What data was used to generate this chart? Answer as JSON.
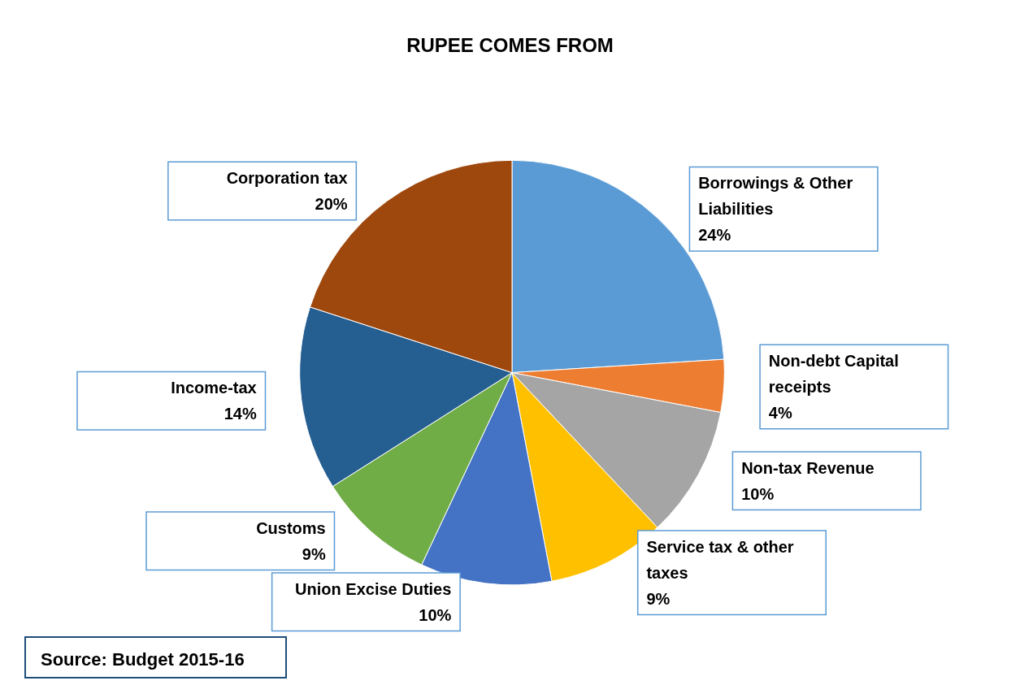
{
  "chart_data": {
    "type": "pie",
    "title": "RUPEE COMES FROM",
    "categories": [
      "Borrowings & Other Liabilities",
      "Non-debt Capital receipts",
      "Non-tax Revenue",
      "Service tax & other taxes",
      "Union Excise Duties",
      "Customs",
      "Income-tax",
      "Corporation tax"
    ],
    "values": [
      24,
      4,
      10,
      9,
      10,
      9,
      14,
      20
    ],
    "value_labels": [
      "24%",
      "4%",
      "10%",
      "9%",
      "10%",
      "9%",
      "14%",
      "20%"
    ],
    "colors": [
      "#5b9bd5",
      "#ed7d31",
      "#a5a5a5",
      "#ffc000",
      "#4472c4",
      "#70ad47",
      "#255e91",
      "#9e480e"
    ],
    "legend": false,
    "annotations": [
      "Source: Budget 2015-16"
    ]
  }
}
